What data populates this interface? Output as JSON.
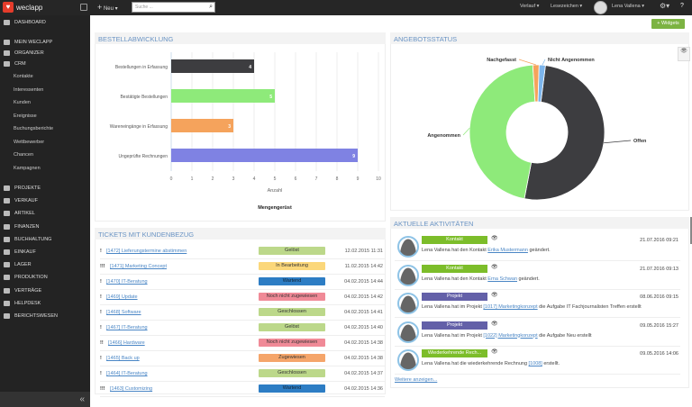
{
  "app": {
    "logo": "weclapp",
    "new": "Neu",
    "search_placeholder": "Suche ...",
    "history": "Verlauf",
    "bookmarks": "Lesezeichen",
    "user": "Lena Vallena",
    "widgets": "Widgets"
  },
  "sidebar": {
    "top": [
      {
        "label": "Dashboard",
        "icon": "home-icon"
      },
      {
        "label": "Mein weclapp",
        "icon": "wrench-icon"
      },
      {
        "label": "Organizer",
        "icon": "organizer-icon"
      },
      {
        "label": "CRM",
        "icon": "people-icon"
      }
    ],
    "crm_sub": [
      "Kontakte",
      "Interessenten",
      "Kunden",
      "Ereignisse",
      "Buchungsberichte",
      "Wettbewerber",
      "Chancen",
      "Kampagnen"
    ],
    "modules": [
      {
        "label": "Projekte",
        "icon": "clock-icon"
      },
      {
        "label": "Verkauf",
        "icon": "document-icon"
      },
      {
        "label": "Artikel",
        "icon": "grid-icon"
      },
      {
        "label": "Finanzen",
        "icon": "piggy-bank-icon"
      },
      {
        "label": "Buchhaltung",
        "icon": "book-icon"
      },
      {
        "label": "Einkauf",
        "icon": "cart-icon"
      },
      {
        "label": "Lager",
        "icon": "forklift-icon"
      },
      {
        "label": "Produktion",
        "icon": "tool-icon"
      },
      {
        "label": "Verträge",
        "icon": "contract-icon"
      },
      {
        "label": "Helpdesk",
        "icon": "headset-icon"
      },
      {
        "label": "Berichtswesen",
        "icon": "bar-chart-icon"
      }
    ]
  },
  "bestell": {
    "title": "Bestellabwicklung"
  },
  "angebot": {
    "title": "Angebotsstatus"
  },
  "chart_data": [
    {
      "type": "bar",
      "orientation": "horizontal",
      "categories": [
        "Bestellungen in Erfassung",
        "Bestätigte Bestellungen",
        "Wareneingänge in Erfassung",
        "Ungeprüfte Rechnungen"
      ],
      "values": [
        4,
        5,
        3,
        9
      ],
      "colors": [
        "#3d3d40",
        "#8eea7a",
        "#f5a35c",
        "#7f82e3"
      ],
      "xlabel": "Anzahl",
      "legend": "Mengengerüst",
      "xlim": [
        0,
        10
      ],
      "xticks": [
        0,
        1,
        2,
        3,
        4,
        5,
        6,
        7,
        8,
        9,
        10
      ]
    },
    {
      "type": "pie",
      "donut": true,
      "categories": [
        "Offen",
        "Angenommen",
        "Nachgefasst",
        "Nicht Angenommen"
      ],
      "values": [
        51,
        46,
        1.5,
        1.5
      ],
      "colors": [
        "#3d3d40",
        "#8eea7a",
        "#f5a35c",
        "#7cb5ec"
      ]
    }
  ],
  "tickets": {
    "title": "Tickets mit Kundenbezug",
    "rows": [
      {
        "prio": "!",
        "label": "[1472] Lieferungstermine abstimmen",
        "status": "Gelöst",
        "color": "#bcd88a",
        "date": "12.02.2015 11:31"
      },
      {
        "prio": "!!!",
        "label": "[1471] Marketing Concept",
        "status": "In Bearbeitung",
        "color": "#fbd77a",
        "date": "11.02.2015 14:42"
      },
      {
        "prio": "!",
        "label": "[1470] IT-Beratung",
        "status": "Wartend",
        "color": "#2d7dc4",
        "date": "04.02.2015 14:44"
      },
      {
        "prio": "!",
        "label": "[1469] Update",
        "status": "Noch nicht zugewiesen",
        "color": "#f08a97",
        "date": "04.02.2015 14:42"
      },
      {
        "prio": "!",
        "label": "[1468] Software",
        "status": "Geschlossen",
        "color": "#bcd88a",
        "date": "04.02.2015 14:41"
      },
      {
        "prio": "!",
        "label": "[1467] IT-Beratung",
        "status": "Gelöst",
        "color": "#bcd88a",
        "date": "04.02.2015 14:40"
      },
      {
        "prio": "!!",
        "label": "[1466] Hardware",
        "status": "Noch nicht zugewiesen",
        "color": "#f08a97",
        "date": "04.02.2015 14:38"
      },
      {
        "prio": "!",
        "label": "[1465] Back up",
        "status": "Zugewiesen",
        "color": "#f5a56a",
        "date": "04.02.2015 14:38"
      },
      {
        "prio": "!",
        "label": "[1464] IT-Beratung",
        "status": "Geschlossen",
        "color": "#bcd88a",
        "date": "04.02.2015 14:37"
      },
      {
        "prio": "!!!",
        "label": "[1463] Customizing",
        "status": "Wartend",
        "color": "#2d7dc4",
        "date": "04.02.2015 14:36"
      }
    ]
  },
  "activities": {
    "title": "Aktuelle Aktivitäten",
    "more": "Weitere anzeigen...",
    "rows": [
      {
        "badge": "Kontakt",
        "color": "#7cbd2a",
        "date": "21.07.2016 09:21",
        "pre": "Lena Vallena hat den Kontakt ",
        "link": "Erika Mustermann",
        "post": " geändert."
      },
      {
        "badge": "Kontakt",
        "color": "#7cbd2a",
        "date": "21.07.2016 09:13",
        "pre": "Lena Vallena hat den Kontakt ",
        "link": "Erna Schwan",
        "post": " geändert."
      },
      {
        "badge": "Projekt",
        "color": "#6360a8",
        "date": "08.06.2016 09:15",
        "pre": "Lena Vallena hat im Projekt ",
        "link": "[1017] Marketingkonzept",
        "post": " die Aufgabe IT Fachjournalisten Treffen erstellt"
      },
      {
        "badge": "Projekt",
        "color": "#6360a8",
        "date": "09.05.2016 15:27",
        "pre": "Lena Vallena hat im Projekt ",
        "link": "[1022] Marketingkonzept",
        "post": " die Aufgabe Neu erstellt"
      },
      {
        "badge": "Wiederkehrende Rech...",
        "color": "#7cbd2a",
        "date": "09.05.2016 14:06",
        "pre": "Lena Vallena hat die wiederkehrende Rechnung ",
        "link": "[1008]",
        "post": " erstellt."
      }
    ]
  }
}
